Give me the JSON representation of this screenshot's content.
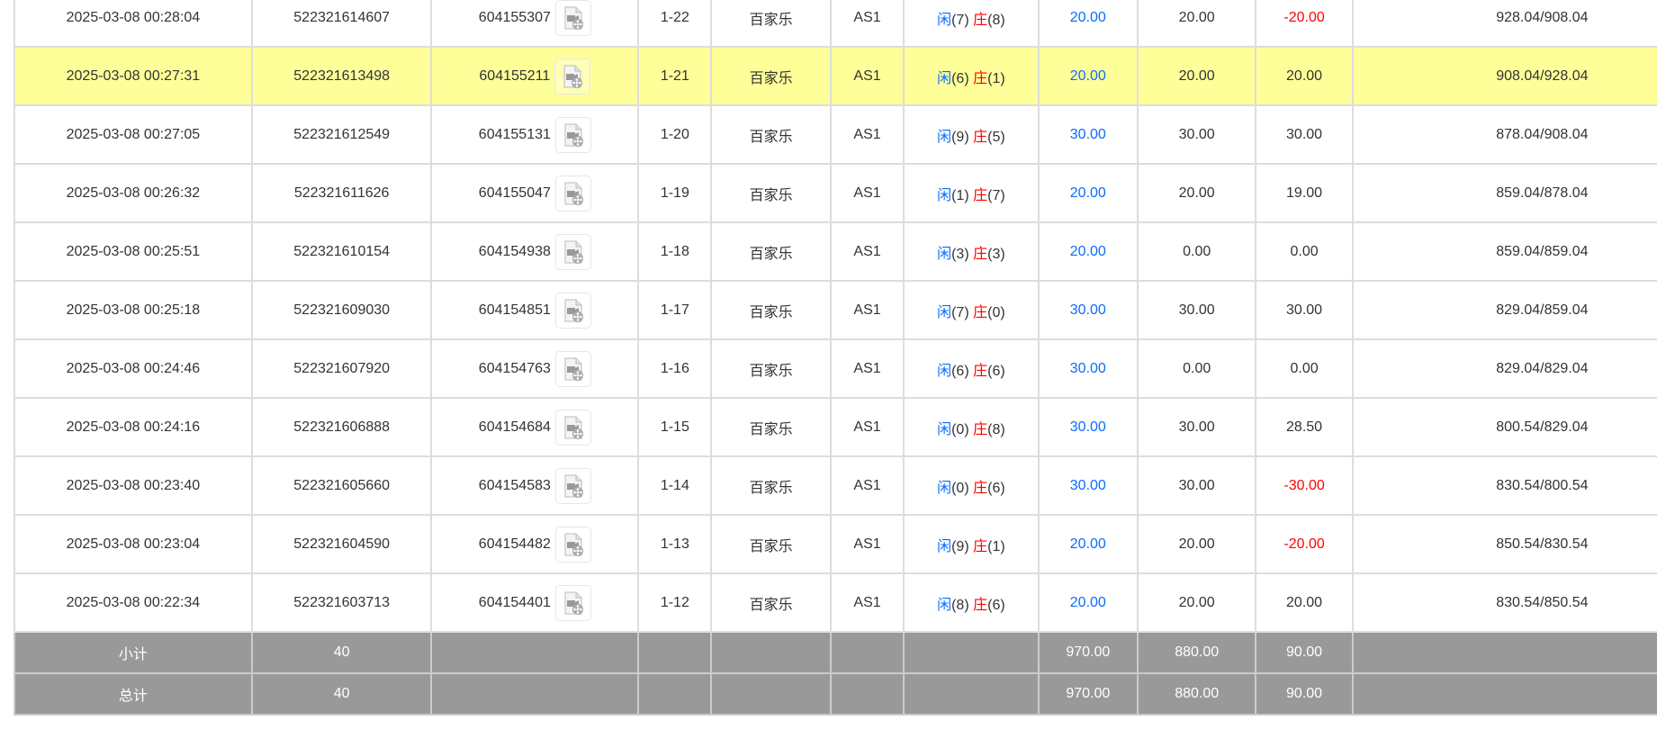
{
  "colors": {
    "highlight": "#ffff99",
    "footer": "#999999",
    "player": "#0a6cff",
    "banker": "#ff0000",
    "loss": "#ff0000"
  },
  "icons": {
    "replay": "video-file-icon"
  },
  "labels": {
    "player": "闲",
    "banker": "庄"
  },
  "rows": [
    {
      "time": "2025-03-08 00:28:04",
      "order": "522321614607",
      "game": "604155307",
      "round": "1-22",
      "type": "百家乐",
      "table": "AS1",
      "p": "(7)",
      "b": "(8)",
      "bet": "20.00",
      "valid": "20.00",
      "win": "-20.00",
      "balance": "928.04/908.04",
      "hl": false
    },
    {
      "time": "2025-03-08 00:27:31",
      "order": "522321613498",
      "game": "604155211",
      "round": "1-21",
      "type": "百家乐",
      "table": "AS1",
      "p": "(6)",
      "b": "(1)",
      "bet": "20.00",
      "valid": "20.00",
      "win": "20.00",
      "balance": "908.04/928.04",
      "hl": true
    },
    {
      "time": "2025-03-08 00:27:05",
      "order": "522321612549",
      "game": "604155131",
      "round": "1-20",
      "type": "百家乐",
      "table": "AS1",
      "p": "(9)",
      "b": "(5)",
      "bet": "30.00",
      "valid": "30.00",
      "win": "30.00",
      "balance": "878.04/908.04",
      "hl": false
    },
    {
      "time": "2025-03-08 00:26:32",
      "order": "522321611626",
      "game": "604155047",
      "round": "1-19",
      "type": "百家乐",
      "table": "AS1",
      "p": "(1)",
      "b": "(7)",
      "bet": "20.00",
      "valid": "20.00",
      "win": "19.00",
      "balance": "859.04/878.04",
      "hl": false
    },
    {
      "time": "2025-03-08 00:25:51",
      "order": "522321610154",
      "game": "604154938",
      "round": "1-18",
      "type": "百家乐",
      "table": "AS1",
      "p": "(3)",
      "b": "(3)",
      "bet": "20.00",
      "valid": "0.00",
      "win": "0.00",
      "balance": "859.04/859.04",
      "hl": false
    },
    {
      "time": "2025-03-08 00:25:18",
      "order": "522321609030",
      "game": "604154851",
      "round": "1-17",
      "type": "百家乐",
      "table": "AS1",
      "p": "(7)",
      "b": "(0)",
      "bet": "30.00",
      "valid": "30.00",
      "win": "30.00",
      "balance": "829.04/859.04",
      "hl": false
    },
    {
      "time": "2025-03-08 00:24:46",
      "order": "522321607920",
      "game": "604154763",
      "round": "1-16",
      "type": "百家乐",
      "table": "AS1",
      "p": "(6)",
      "b": "(6)",
      "bet": "30.00",
      "valid": "0.00",
      "win": "0.00",
      "balance": "829.04/829.04",
      "hl": false
    },
    {
      "time": "2025-03-08 00:24:16",
      "order": "522321606888",
      "game": "604154684",
      "round": "1-15",
      "type": "百家乐",
      "table": "AS1",
      "p": "(0)",
      "b": "(8)",
      "bet": "30.00",
      "valid": "30.00",
      "win": "28.50",
      "balance": "800.54/829.04",
      "hl": false
    },
    {
      "time": "2025-03-08 00:23:40",
      "order": "522321605660",
      "game": "604154583",
      "round": "1-14",
      "type": "百家乐",
      "table": "AS1",
      "p": "(0)",
      "b": "(6)",
      "bet": "30.00",
      "valid": "30.00",
      "win": "-30.00",
      "balance": "830.54/800.54",
      "hl": false
    },
    {
      "time": "2025-03-08 00:23:04",
      "order": "522321604590",
      "game": "604154482",
      "round": "1-13",
      "type": "百家乐",
      "table": "AS1",
      "p": "(9)",
      "b": "(1)",
      "bet": "20.00",
      "valid": "20.00",
      "win": "-20.00",
      "balance": "850.54/830.54",
      "hl": false
    },
    {
      "time": "2025-03-08 00:22:34",
      "order": "522321603713",
      "game": "604154401",
      "round": "1-12",
      "type": "百家乐",
      "table": "AS1",
      "p": "(8)",
      "b": "(6)",
      "bet": "20.00",
      "valid": "20.00",
      "win": "20.00",
      "balance": "830.54/850.54",
      "hl": false
    }
  ],
  "footer": [
    {
      "label": "小计",
      "count": "40",
      "bet": "970.00",
      "valid": "880.00",
      "win": "90.00"
    },
    {
      "label": "总计",
      "count": "40",
      "bet": "970.00",
      "valid": "880.00",
      "win": "90.00"
    }
  ]
}
